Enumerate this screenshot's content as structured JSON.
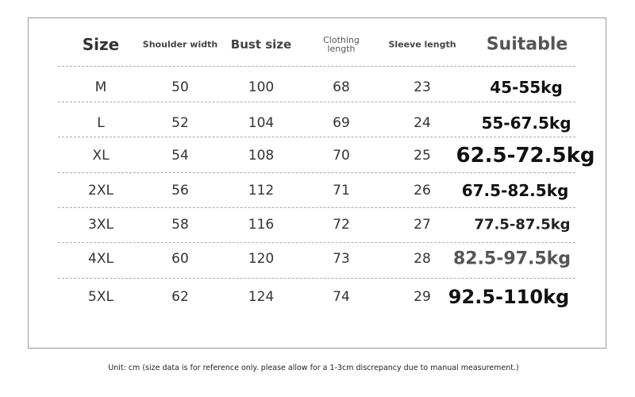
{
  "table": {
    "header": [
      "Size",
      "Shoulder width",
      "Bust size",
      "Clothing length",
      "Sleeve length",
      "Suitable"
    ],
    "rows": [
      [
        "M",
        50,
        100,
        68,
        23,
        "45-55kg"
      ],
      [
        "L",
        52,
        104,
        69,
        24,
        "55-67.5kg"
      ],
      [
        "XL",
        54,
        108,
        70,
        25,
        "62.5-72.5kg"
      ],
      [
        "2XL",
        56,
        112,
        71,
        26,
        "67.5-82.5kg"
      ],
      [
        "3XL",
        58,
        116,
        72,
        27,
        "77.5-87.5kg"
      ],
      [
        "4XL",
        60,
        120,
        73,
        28,
        "82.5-97.5kg"
      ],
      [
        "5XL",
        62,
        124,
        74,
        29,
        "92.5-110kg"
      ]
    ]
  },
  "footnote": "Unit: cm (size data is for reference only. please allow for a 1-3cm discrepancy due to manual measurement.)"
}
